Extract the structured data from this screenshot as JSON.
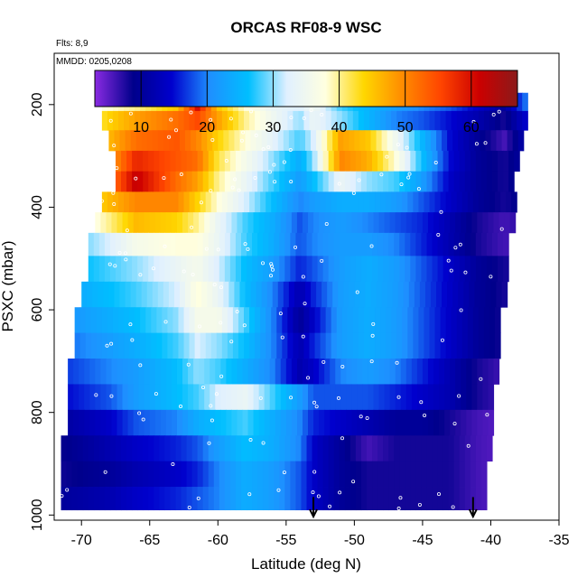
{
  "chart_data": {
    "type": "heatmap",
    "title": "ORCAS RF08-9 WSC",
    "notes": [
      "Flts: 8,9",
      "MMDD: 0205,0208"
    ],
    "xlabel": "Latitude (deg N)",
    "ylabel": "PSXC (mbar)",
    "xlim": [
      -72,
      -35
    ],
    "ylim": [
      1010,
      100
    ],
    "x_ticks": [
      -70,
      -65,
      -60,
      -55,
      -50,
      -45,
      -40,
      -35
    ],
    "y_ticks": [
      200,
      400,
      600,
      800,
      1000
    ],
    "colorbar": {
      "min": 3,
      "max": 67,
      "ticks": [
        10,
        20,
        30,
        40,
        50,
        60
      ],
      "colors": [
        "#8a2be2",
        "#00008b",
        "#0000cd",
        "#1e90ff",
        "#00bfff",
        "#e0f0ff",
        "#ffffe0",
        "#ffd700",
        "#ff8c00",
        "#ff4500",
        "#cc0000",
        "#8b1a1a"
      ]
    },
    "arrows_at_latitude": [
      -53,
      -41.3
    ],
    "field": {
      "lat_nodes": [
        -72,
        -68,
        -66,
        -63,
        -61.5,
        -60,
        -58,
        -56,
        -54,
        -53,
        -51,
        -49,
        -47,
        -45,
        -43,
        -41,
        -39,
        -37
      ],
      "levels_mbar": [
        195,
        230,
        270,
        310,
        350,
        390,
        430,
        470,
        520,
        570,
        620,
        670,
        720,
        770,
        820,
        870,
        920,
        970
      ],
      "row_left_edge_lat": [
        -68.5,
        -68.5,
        -68,
        -67.5,
        -67.5,
        -68.5,
        -69,
        -69.5,
        -69.5,
        -70,
        -70.5,
        -70.5,
        -71,
        -71,
        -71,
        -71.5,
        -71.5,
        -71.5
      ],
      "row_right_edge_lat": [
        -37.5,
        -37.5,
        -38,
        -38,
        -38.5,
        -38.5,
        -38.5,
        -39,
        -39,
        -39,
        -39.5,
        -39.5,
        -39.5,
        -40,
        -40,
        -40,
        -40.5,
        -40.5
      ],
      "values": [
        [
          30,
          38,
          40,
          45,
          60,
          45,
          38,
          34,
          32,
          35,
          28,
          25,
          22,
          20,
          18,
          14,
          10,
          22
        ],
        [
          32,
          44,
          48,
          52,
          55,
          48,
          40,
          35,
          30,
          34,
          30,
          25,
          20,
          18,
          15,
          12,
          8,
          16
        ],
        [
          35,
          46,
          52,
          54,
          50,
          44,
          38,
          33,
          28,
          32,
          48,
          45,
          35,
          25,
          15,
          10,
          6,
          14
        ],
        [
          38,
          47,
          58,
          54,
          52,
          42,
          36,
          30,
          24,
          30,
          50,
          47,
          38,
          26,
          15,
          10,
          8,
          12
        ],
        [
          36,
          50,
          62,
          52,
          48,
          40,
          34,
          28,
          22,
          26,
          34,
          30,
          28,
          22,
          14,
          10,
          8,
          12
        ],
        [
          34,
          46,
          50,
          50,
          44,
          38,
          32,
          26,
          20,
          22,
          24,
          24,
          22,
          18,
          14,
          10,
          8,
          10
        ],
        [
          30,
          40,
          46,
          44,
          40,
          34,
          28,
          24,
          18,
          20,
          22,
          20,
          18,
          16,
          12,
          8,
          6,
          8
        ],
        [
          26,
          32,
          36,
          38,
          38,
          34,
          28,
          24,
          18,
          20,
          22,
          22,
          20,
          16,
          12,
          8,
          6,
          8
        ],
        [
          24,
          28,
          30,
          34,
          36,
          32,
          26,
          22,
          16,
          18,
          22,
          24,
          22,
          18,
          14,
          10,
          8,
          8
        ],
        [
          22,
          26,
          28,
          32,
          38,
          34,
          26,
          20,
          12,
          16,
          22,
          24,
          22,
          18,
          14,
          10,
          8,
          8
        ],
        [
          20,
          24,
          26,
          30,
          36,
          36,
          28,
          20,
          10,
          14,
          22,
          24,
          22,
          18,
          14,
          10,
          8,
          8
        ],
        [
          18,
          22,
          24,
          28,
          32,
          30,
          26,
          20,
          12,
          16,
          22,
          24,
          22,
          18,
          14,
          10,
          8,
          8
        ],
        [
          16,
          20,
          22,
          26,
          30,
          28,
          24,
          20,
          12,
          14,
          20,
          22,
          20,
          16,
          12,
          8,
          6,
          6
        ],
        [
          14,
          18,
          22,
          26,
          28,
          32,
          34,
          28,
          22,
          18,
          18,
          18,
          16,
          14,
          12,
          8,
          6,
          6
        ],
        [
          10,
          14,
          18,
          20,
          24,
          26,
          28,
          24,
          20,
          16,
          14,
          12,
          10,
          10,
          8,
          6,
          5,
          5
        ],
        [
          8,
          12,
          14,
          16,
          18,
          22,
          26,
          24,
          20,
          14,
          10,
          6,
          8,
          8,
          8,
          6,
          5,
          5
        ],
        [
          8,
          10,
          12,
          14,
          16,
          20,
          24,
          22,
          18,
          14,
          10,
          8,
          8,
          8,
          8,
          6,
          5,
          5
        ],
        [
          10,
          12,
          14,
          16,
          18,
          20,
          24,
          22,
          18,
          14,
          10,
          8,
          8,
          8,
          8,
          6,
          5,
          5
        ]
      ]
    }
  }
}
